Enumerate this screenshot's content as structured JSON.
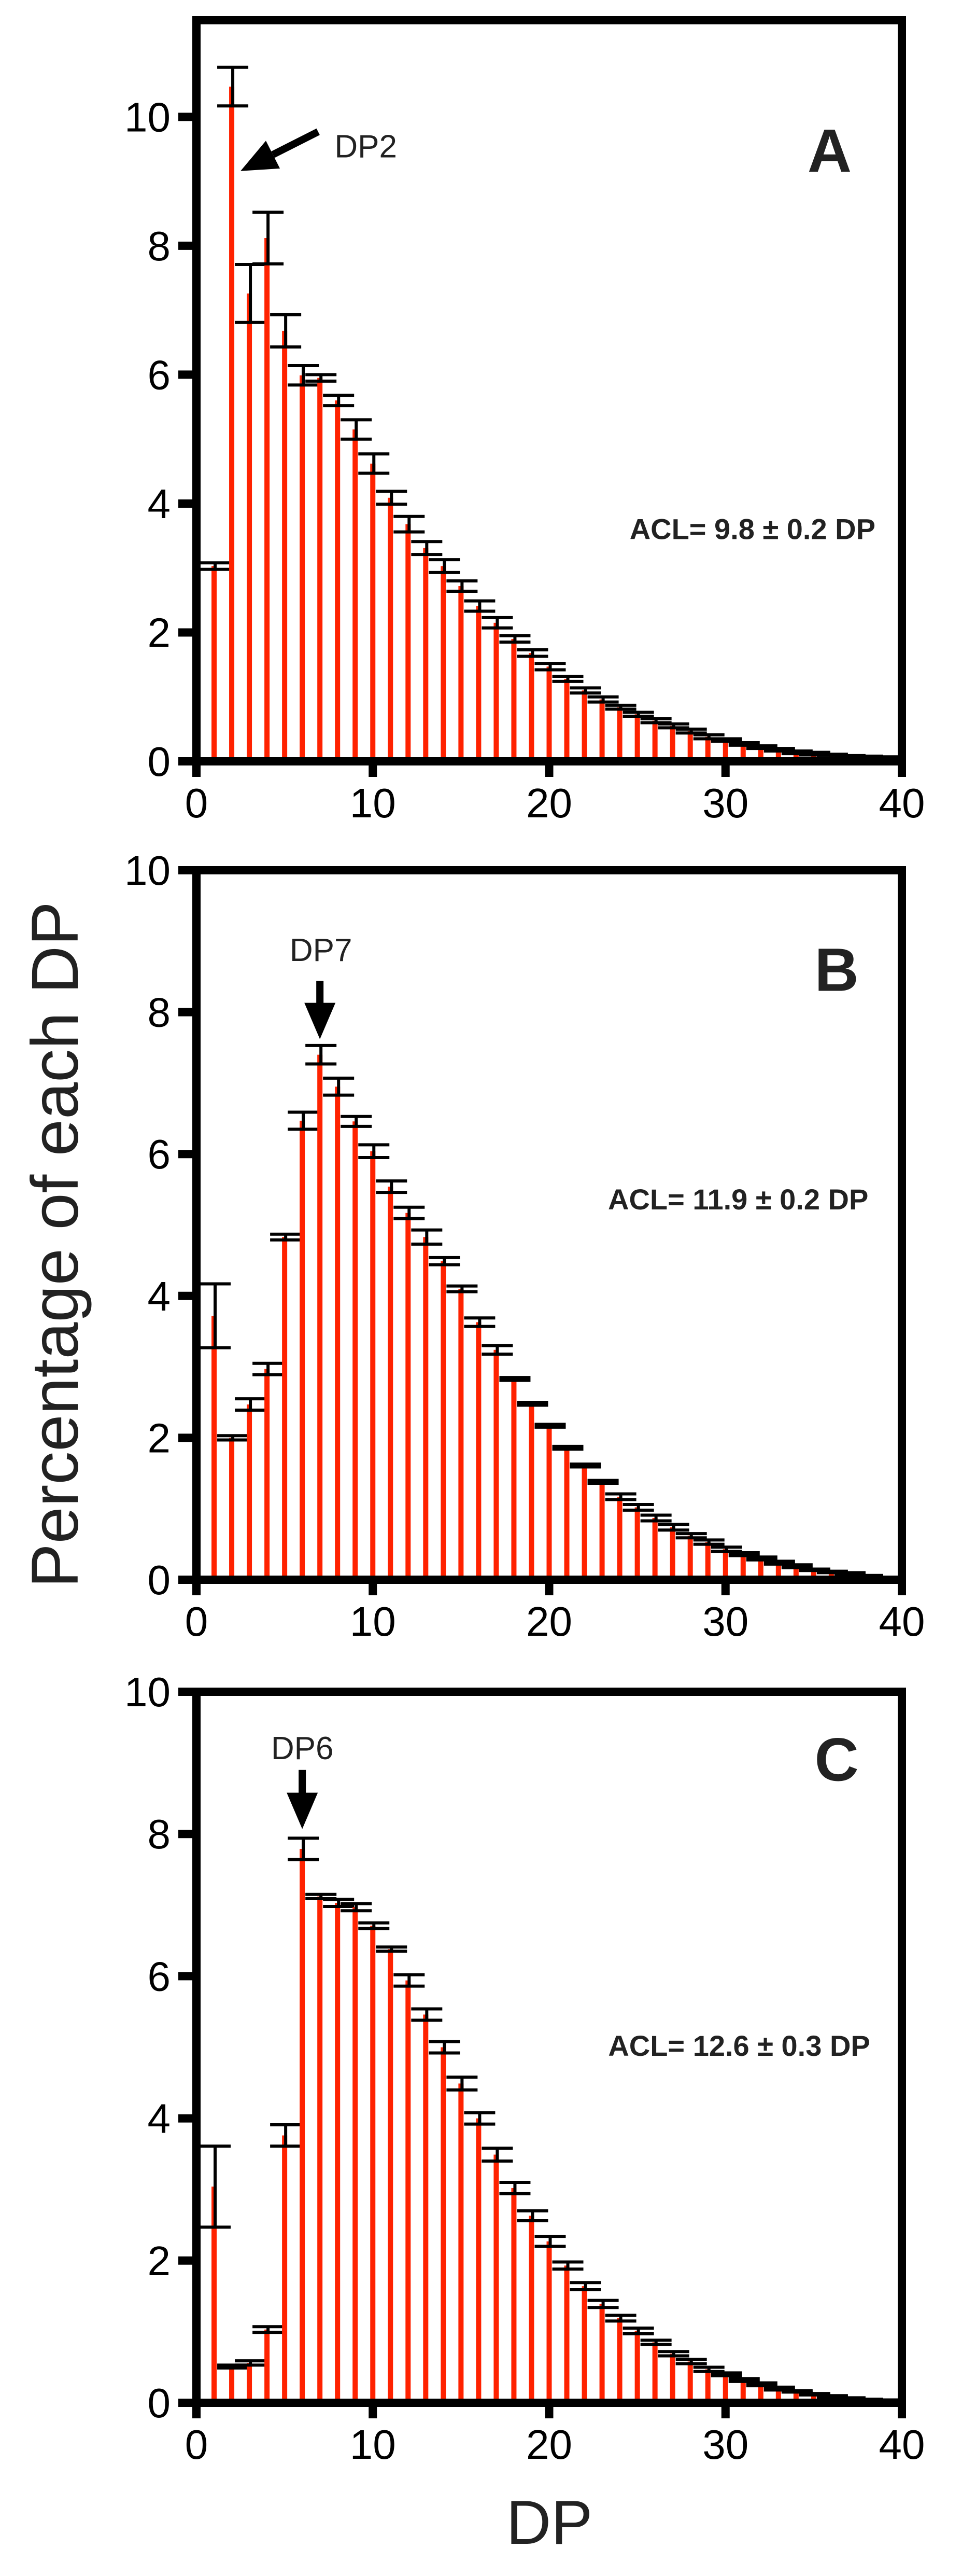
{
  "colors": {
    "bar": "#ff2200",
    "axis": "#000000",
    "error": "#000000"
  },
  "chart_data": [
    {
      "type": "bar",
      "panel": "A",
      "xlabel": "DP",
      "ylabel": "Percentage of each DP",
      "xlim": [
        0,
        40
      ],
      "ylim": [
        0,
        11.5
      ],
      "xticks": [
        0,
        10,
        20,
        30,
        40
      ],
      "yticks": [
        0,
        2,
        4,
        6,
        8,
        10
      ],
      "annotation": "DP2",
      "acl": "ACL= 9.8 ± 0.2 DP",
      "x": [
        1,
        2,
        3,
        4,
        5,
        6,
        7,
        8,
        9,
        10,
        11,
        12,
        13,
        14,
        15,
        16,
        17,
        18,
        19,
        20,
        21,
        22,
        23,
        24,
        25,
        26,
        27,
        28,
        29,
        30,
        31,
        32,
        33,
        34,
        35,
        36,
        37,
        38,
        39
      ],
      "values": [
        3.03,
        10.47,
        7.26,
        8.12,
        6.68,
        5.99,
        5.95,
        5.6,
        5.15,
        4.62,
        4.09,
        3.68,
        3.31,
        3.03,
        2.72,
        2.41,
        2.15,
        1.9,
        1.68,
        1.47,
        1.28,
        1.1,
        0.96,
        0.84,
        0.73,
        0.63,
        0.55,
        0.47,
        0.38,
        0.33,
        0.27,
        0.22,
        0.18,
        0.14,
        0.12,
        0.1,
        0.08,
        0.07,
        0.06
      ],
      "errors": [
        0.05,
        0.3,
        0.45,
        0.4,
        0.25,
        0.15,
        0.05,
        0.08,
        0.15,
        0.15,
        0.1,
        0.12,
        0.1,
        0.1,
        0.08,
        0.08,
        0.08,
        0.05,
        0.05,
        0.05,
        0.04,
        0.04,
        0.04,
        0.03,
        0.03,
        0.03,
        0.03,
        0.03,
        0.03,
        0.02,
        0.02,
        0.02,
        0.02,
        0.02,
        0.02,
        0.01,
        0.01,
        0.01,
        0.01
      ]
    },
    {
      "type": "bar",
      "panel": "B",
      "xlim": [
        0,
        40
      ],
      "ylim": [
        0,
        10
      ],
      "xticks": [
        0,
        10,
        20,
        30,
        40
      ],
      "yticks": [
        0,
        2,
        4,
        6,
        8,
        10
      ],
      "annotation": "DP7",
      "acl": "ACL= 11.9 ± 0.2 DP",
      "x": [
        1,
        2,
        3,
        4,
        5,
        6,
        7,
        8,
        9,
        10,
        11,
        12,
        13,
        14,
        15,
        16,
        17,
        18,
        19,
        20,
        21,
        22,
        23,
        24,
        25,
        26,
        27,
        28,
        29,
        30,
        31,
        32,
        33,
        34,
        35,
        36,
        37,
        38
      ],
      "values": [
        3.72,
        2.0,
        2.47,
        2.97,
        4.83,
        6.47,
        7.4,
        6.95,
        6.46,
        6.04,
        5.54,
        5.17,
        4.83,
        4.49,
        4.1,
        3.63,
        3.24,
        2.83,
        2.48,
        2.17,
        1.86,
        1.61,
        1.38,
        1.17,
        1.02,
        0.87,
        0.74,
        0.62,
        0.53,
        0.43,
        0.36,
        0.3,
        0.24,
        0.19,
        0.14,
        0.11,
        0.09,
        0.05
      ],
      "errors": [
        0.45,
        0.03,
        0.08,
        0.08,
        0.04,
        0.12,
        0.13,
        0.12,
        0.07,
        0.09,
        0.08,
        0.08,
        0.1,
        0.05,
        0.04,
        0.06,
        0.06,
        0.02,
        0.02,
        0.02,
        0.02,
        0.02,
        0.02,
        0.04,
        0.04,
        0.04,
        0.04,
        0.03,
        0.03,
        0.03,
        0.02,
        0.02,
        0.02,
        0.02,
        0.01,
        0.01,
        0.01,
        0.01
      ]
    },
    {
      "type": "bar",
      "panel": "C",
      "xlim": [
        0,
        40
      ],
      "ylim": [
        0,
        10
      ],
      "xticks": [
        0,
        10,
        20,
        30,
        40
      ],
      "yticks": [
        0,
        2,
        4,
        6,
        8,
        10
      ],
      "annotation": "DP6",
      "acl": "ACL= 12.6 ± 0.3 DP",
      "x": [
        1,
        2,
        3,
        4,
        5,
        6,
        7,
        8,
        9,
        10,
        11,
        12,
        13,
        14,
        15,
        16,
        17,
        18,
        19,
        20,
        21,
        22,
        23,
        24,
        25,
        26,
        27,
        28,
        29,
        30,
        31,
        32,
        33,
        34,
        35,
        36,
        37,
        38,
        39
      ],
      "values": [
        3.04,
        0.51,
        0.56,
        1.03,
        3.76,
        7.79,
        7.12,
        7.03,
        6.97,
        6.71,
        6.38,
        5.94,
        5.46,
        5.0,
        4.49,
        4.0,
        3.49,
        3.02,
        2.63,
        2.27,
        1.93,
        1.64,
        1.39,
        1.19,
        1.01,
        0.85,
        0.69,
        0.58,
        0.47,
        0.4,
        0.32,
        0.26,
        0.2,
        0.16,
        0.12,
        0.09,
        0.06,
        0.04,
        0.03
      ],
      "errors": [
        0.57,
        0.02,
        0.03,
        0.04,
        0.15,
        0.15,
        0.03,
        0.05,
        0.05,
        0.04,
        0.03,
        0.08,
        0.08,
        0.08,
        0.09,
        0.08,
        0.09,
        0.08,
        0.07,
        0.07,
        0.05,
        0.05,
        0.05,
        0.04,
        0.04,
        0.03,
        0.03,
        0.03,
        0.03,
        0.02,
        0.02,
        0.02,
        0.02,
        0.01,
        0.01,
        0.01,
        0.01,
        0.01,
        0.01
      ]
    }
  ]
}
